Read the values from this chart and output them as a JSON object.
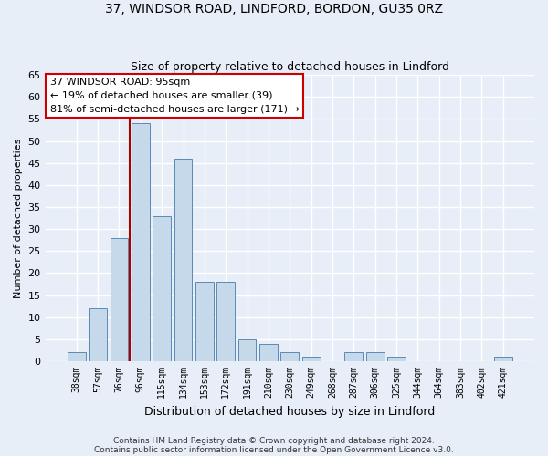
{
  "title1": "37, WINDSOR ROAD, LINDFORD, BORDON, GU35 0RZ",
  "title2": "Size of property relative to detached houses in Lindford",
  "xlabel": "Distribution of detached houses by size in Lindford",
  "ylabel": "Number of detached properties",
  "bar_labels": [
    "38sqm",
    "57sqm",
    "76sqm",
    "96sqm",
    "115sqm",
    "134sqm",
    "153sqm",
    "172sqm",
    "191sqm",
    "210sqm",
    "230sqm",
    "249sqm",
    "268sqm",
    "287sqm",
    "306sqm",
    "325sqm",
    "344sqm",
    "364sqm",
    "383sqm",
    "402sqm",
    "421sqm"
  ],
  "bar_values": [
    2,
    12,
    28,
    54,
    33,
    46,
    18,
    18,
    5,
    4,
    2,
    1,
    0,
    2,
    2,
    1,
    0,
    0,
    0,
    0,
    1
  ],
  "bar_color": "#c6d9ea",
  "bar_edge_color": "#5a8ab5",
  "vline_x_index": 3,
  "vline_color": "#aa0000",
  "annotation_line1": "37 WINDSOR ROAD: 95sqm",
  "annotation_line2": "← 19% of detached houses are smaller (39)",
  "annotation_line3": "81% of semi-detached houses are larger (171) →",
  "ylim": [
    0,
    65
  ],
  "yticks": [
    0,
    5,
    10,
    15,
    20,
    25,
    30,
    35,
    40,
    45,
    50,
    55,
    60,
    65
  ],
  "footer1": "Contains HM Land Registry data © Crown copyright and database right 2024.",
  "footer2": "Contains public sector information licensed under the Open Government Licence v3.0.",
  "bg_color": "#e8eef8",
  "grid_color": "#ffffff"
}
